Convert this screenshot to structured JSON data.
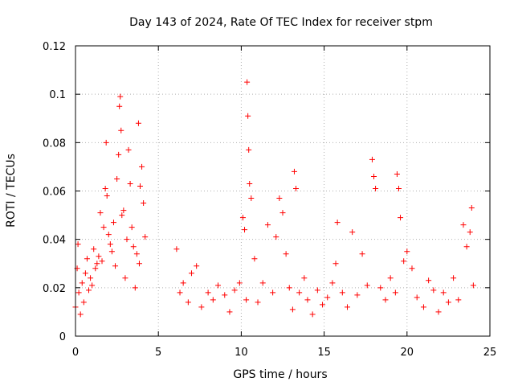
{
  "chart_data": {
    "type": "scatter",
    "title": "Day 143 of 2024, Rate Of TEC Index for receiver stpm",
    "xlabel": "GPS time / hours",
    "ylabel": "ROTI / TECUs",
    "xlim": [
      0,
      25
    ],
    "ylim": [
      0,
      0.12
    ],
    "x_ticks": [
      "0",
      "5",
      "10",
      "15",
      "20",
      "25"
    ],
    "y_ticks": [
      "0",
      "0.02",
      "0.04",
      "0.06",
      "0.08",
      "0.1",
      "0.12"
    ],
    "grid": true,
    "marker": "+",
    "series": [
      {
        "name": "ROTI",
        "color": "#ff0000",
        "points": [
          [
            0.0,
            0.012
          ],
          [
            0.1,
            0.028
          ],
          [
            0.15,
            0.038
          ],
          [
            0.2,
            0.018
          ],
          [
            0.3,
            0.009
          ],
          [
            0.4,
            0.022
          ],
          [
            0.5,
            0.014
          ],
          [
            0.6,
            0.026
          ],
          [
            0.7,
            0.032
          ],
          [
            0.8,
            0.019
          ],
          [
            0.9,
            0.024
          ],
          [
            1.0,
            0.021
          ],
          [
            1.1,
            0.036
          ],
          [
            1.2,
            0.028
          ],
          [
            1.3,
            0.03
          ],
          [
            1.4,
            0.033
          ],
          [
            1.5,
            0.051
          ],
          [
            1.6,
            0.031
          ],
          [
            1.7,
            0.045
          ],
          [
            1.8,
            0.061
          ],
          [
            1.85,
            0.08
          ],
          [
            1.9,
            0.058
          ],
          [
            2.0,
            0.042
          ],
          [
            2.1,
            0.038
          ],
          [
            2.2,
            0.035
          ],
          [
            2.3,
            0.047
          ],
          [
            2.4,
            0.029
          ],
          [
            2.5,
            0.065
          ],
          [
            2.6,
            0.075
          ],
          [
            2.65,
            0.095
          ],
          [
            2.7,
            0.099
          ],
          [
            2.75,
            0.085
          ],
          [
            2.8,
            0.05
          ],
          [
            2.9,
            0.052
          ],
          [
            3.0,
            0.024
          ],
          [
            3.1,
            0.04
          ],
          [
            3.2,
            0.077
          ],
          [
            3.3,
            0.063
          ],
          [
            3.4,
            0.045
          ],
          [
            3.5,
            0.037
          ],
          [
            3.6,
            0.02
          ],
          [
            3.7,
            0.034
          ],
          [
            3.8,
            0.088
          ],
          [
            3.85,
            0.03
          ],
          [
            3.9,
            0.062
          ],
          [
            4.0,
            0.07
          ],
          [
            4.1,
            0.055
          ],
          [
            4.2,
            0.041
          ],
          [
            6.1,
            0.036
          ],
          [
            6.3,
            0.018
          ],
          [
            6.5,
            0.022
          ],
          [
            6.8,
            0.014
          ],
          [
            7.0,
            0.026
          ],
          [
            7.3,
            0.029
          ],
          [
            7.6,
            0.012
          ],
          [
            8.0,
            0.018
          ],
          [
            8.3,
            0.015
          ],
          [
            8.6,
            0.021
          ],
          [
            9.0,
            0.017
          ],
          [
            9.3,
            0.01
          ],
          [
            9.6,
            0.019
          ],
          [
            9.9,
            0.022
          ],
          [
            10.1,
            0.049
          ],
          [
            10.2,
            0.044
          ],
          [
            10.3,
            0.015
          ],
          [
            10.35,
            0.105
          ],
          [
            10.4,
            0.091
          ],
          [
            10.45,
            0.077
          ],
          [
            10.5,
            0.063
          ],
          [
            10.6,
            0.057
          ],
          [
            10.8,
            0.032
          ],
          [
            11.0,
            0.014
          ],
          [
            11.3,
            0.022
          ],
          [
            11.6,
            0.046
          ],
          [
            11.9,
            0.018
          ],
          [
            12.1,
            0.041
          ],
          [
            12.3,
            0.057
          ],
          [
            12.5,
            0.051
          ],
          [
            12.7,
            0.034
          ],
          [
            12.9,
            0.02
          ],
          [
            13.1,
            0.011
          ],
          [
            13.2,
            0.068
          ],
          [
            13.3,
            0.061
          ],
          [
            13.5,
            0.018
          ],
          [
            13.8,
            0.024
          ],
          [
            14.0,
            0.015
          ],
          [
            14.3,
            0.009
          ],
          [
            14.6,
            0.019
          ],
          [
            14.9,
            0.013
          ],
          [
            15.2,
            0.016
          ],
          [
            15.5,
            0.022
          ],
          [
            15.7,
            0.03
          ],
          [
            15.8,
            0.047
          ],
          [
            16.1,
            0.018
          ],
          [
            16.4,
            0.012
          ],
          [
            16.7,
            0.043
          ],
          [
            17.0,
            0.017
          ],
          [
            17.3,
            0.034
          ],
          [
            17.6,
            0.021
          ],
          [
            17.9,
            0.073
          ],
          [
            18.0,
            0.066
          ],
          [
            18.1,
            0.061
          ],
          [
            18.4,
            0.02
          ],
          [
            18.7,
            0.015
          ],
          [
            19.0,
            0.024
          ],
          [
            19.3,
            0.018
          ],
          [
            19.4,
            0.067
          ],
          [
            19.5,
            0.061
          ],
          [
            19.6,
            0.049
          ],
          [
            19.8,
            0.031
          ],
          [
            20.0,
            0.035
          ],
          [
            20.3,
            0.028
          ],
          [
            20.6,
            0.016
          ],
          [
            21.0,
            0.012
          ],
          [
            21.3,
            0.023
          ],
          [
            21.6,
            0.019
          ],
          [
            21.9,
            0.01
          ],
          [
            22.2,
            0.018
          ],
          [
            22.5,
            0.014
          ],
          [
            22.8,
            0.024
          ],
          [
            23.1,
            0.015
          ],
          [
            23.4,
            0.046
          ],
          [
            23.6,
            0.037
          ],
          [
            23.8,
            0.043
          ],
          [
            23.9,
            0.053
          ],
          [
            24.0,
            0.021
          ]
        ]
      }
    ]
  }
}
